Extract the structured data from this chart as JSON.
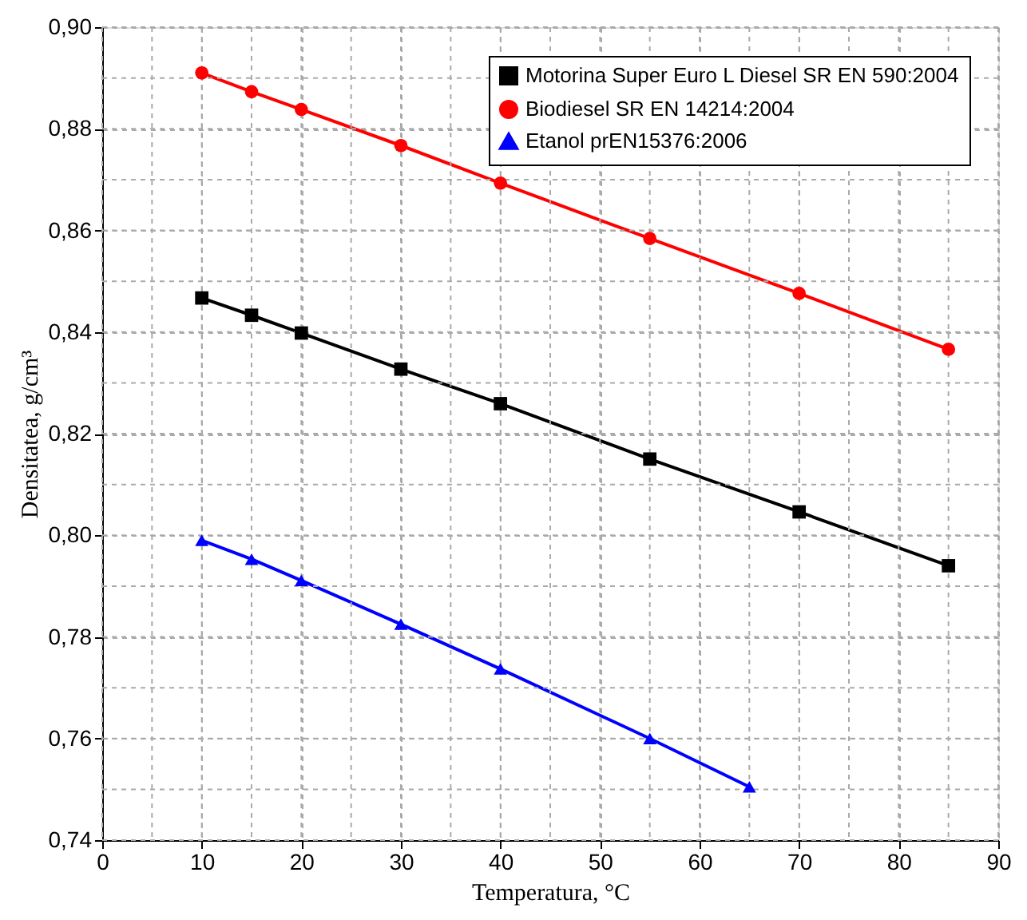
{
  "chart_data": {
    "type": "line",
    "xlabel": "Temperatura, °C",
    "ylabel": "Densitatea, g/cm³",
    "xlim": [
      0,
      90
    ],
    "ylim": [
      0.74,
      0.9
    ],
    "xticks": [
      {
        "value": 0,
        "label": "0"
      },
      {
        "value": 5,
        "label": null
      },
      {
        "value": 10,
        "label": "10"
      },
      {
        "value": 15,
        "label": null
      },
      {
        "value": 20,
        "label": "20"
      },
      {
        "value": 25,
        "label": null
      },
      {
        "value": 30,
        "label": "30"
      },
      {
        "value": 35,
        "label": null
      },
      {
        "value": 40,
        "label": "40"
      },
      {
        "value": 45,
        "label": null
      },
      {
        "value": 50,
        "label": "50"
      },
      {
        "value": 55,
        "label": null
      },
      {
        "value": 60,
        "label": "60"
      },
      {
        "value": 65,
        "label": null
      },
      {
        "value": 70,
        "label": "70"
      },
      {
        "value": 75,
        "label": null
      },
      {
        "value": 80,
        "label": "80"
      },
      {
        "value": 85,
        "label": null
      },
      {
        "value": 90,
        "label": "90"
      }
    ],
    "yticks": [
      {
        "value": 0.74,
        "label": "0,74"
      },
      {
        "value": 0.75,
        "label": null
      },
      {
        "value": 0.76,
        "label": "0,76"
      },
      {
        "value": 0.77,
        "label": null
      },
      {
        "value": 0.78,
        "label": "0,78"
      },
      {
        "value": 0.79,
        "label": null
      },
      {
        "value": 0.8,
        "label": "0,80"
      },
      {
        "value": 0.81,
        "label": null
      },
      {
        "value": 0.82,
        "label": "0,82"
      },
      {
        "value": 0.83,
        "label": null
      },
      {
        "value": 0.84,
        "label": "0,84"
      },
      {
        "value": 0.85,
        "label": null
      },
      {
        "value": 0.86,
        "label": "0,86"
      },
      {
        "value": 0.87,
        "label": null
      },
      {
        "value": 0.88,
        "label": "0,88"
      },
      {
        "value": 0.89,
        "label": null
      },
      {
        "value": 0.9,
        "label": "0,90"
      }
    ],
    "grid": true,
    "legend": "top right",
    "line_style": "solid",
    "series": [
      {
        "name": "Motorina Super Euro L Diesel SR EN 590:2004",
        "color": "#000000",
        "marker": "square",
        "x": [
          10,
          15,
          20,
          30,
          40,
          55,
          70,
          85
        ],
        "values": [
          0.8467,
          0.8433,
          0.8398,
          0.8327,
          0.8259,
          0.815,
          0.8046,
          0.794
        ]
      },
      {
        "name": "Biodiesel SR EN 14214:2004",
        "color": "#ff0000",
        "marker": "circle",
        "x": [
          10,
          15,
          20,
          30,
          40,
          55,
          70,
          85
        ],
        "values": [
          0.891,
          0.8873,
          0.8838,
          0.8767,
          0.8693,
          0.8584,
          0.8476,
          0.8366
        ]
      },
      {
        "name": "Etanol prEN15376:2006",
        "color": "#0000ff",
        "marker": "triangle",
        "x": [
          10,
          15,
          20,
          30,
          40,
          55,
          65
        ],
        "values": [
          0.799,
          0.7953,
          0.7911,
          0.7825,
          0.7737,
          0.76,
          0.7505
        ]
      }
    ]
  }
}
